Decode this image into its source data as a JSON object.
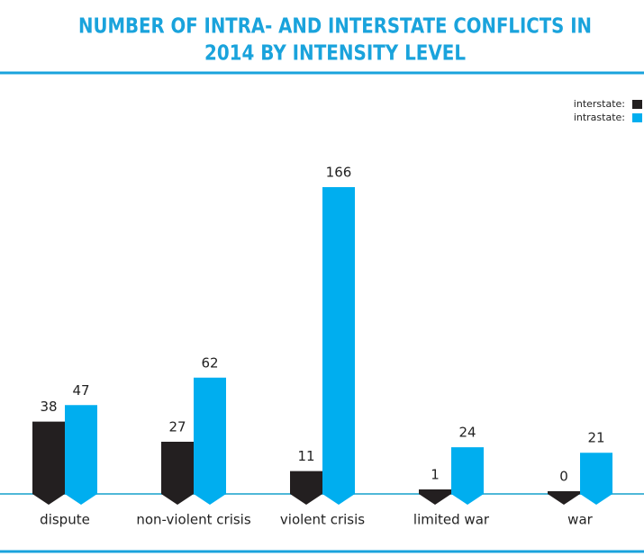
{
  "chart_data": {
    "type": "bar",
    "title": [
      "NUMBER OF INTRA- AND INTERSTATE CONFLICTS IN",
      "2014 BY INTENSITY LEVEL"
    ],
    "categories": [
      "dispute",
      "non-violent crisis",
      "violent crisis",
      "limited war",
      "war"
    ],
    "series": [
      {
        "name": "interstate:",
        "color": "#231f20",
        "values": [
          38,
          27,
          11,
          1,
          0
        ]
      },
      {
        "name": "intrastate:",
        "color": "#00aeef",
        "values": [
          47,
          62,
          166,
          24,
          21
        ]
      }
    ],
    "legend": "top-right"
  }
}
